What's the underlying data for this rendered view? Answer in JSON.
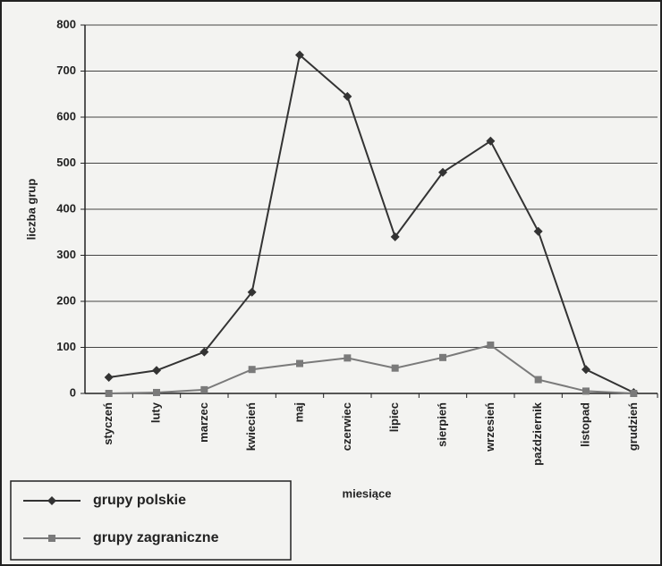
{
  "chart_data": {
    "type": "line",
    "ylabel": "liczba grup",
    "xlabel": "miesiące",
    "categories": [
      "styczeń",
      "luty",
      "marzec",
      "kwiecień",
      "maj",
      "czerwiec",
      "lipiec",
      "sierpień",
      "wrzesień",
      "październik",
      "listopad",
      "grudzień"
    ],
    "series": [
      {
        "name": "grupy polskie",
        "color": "#333333",
        "marker": "diamond",
        "values": [
          35,
          50,
          90,
          220,
          735,
          645,
          340,
          480,
          548,
          352,
          52,
          2
        ]
      },
      {
        "name": "grupy zagraniczne",
        "color": "#7a7a7a",
        "marker": "square",
        "values": [
          0,
          2,
          8,
          52,
          65,
          77,
          55,
          78,
          105,
          30,
          5,
          0
        ]
      }
    ],
    "ylim": [
      0,
      800
    ],
    "yticks": [
      0,
      100,
      200,
      300,
      400,
      500,
      600,
      700,
      800
    ],
    "grid": true,
    "legend": "bottom-left"
  }
}
